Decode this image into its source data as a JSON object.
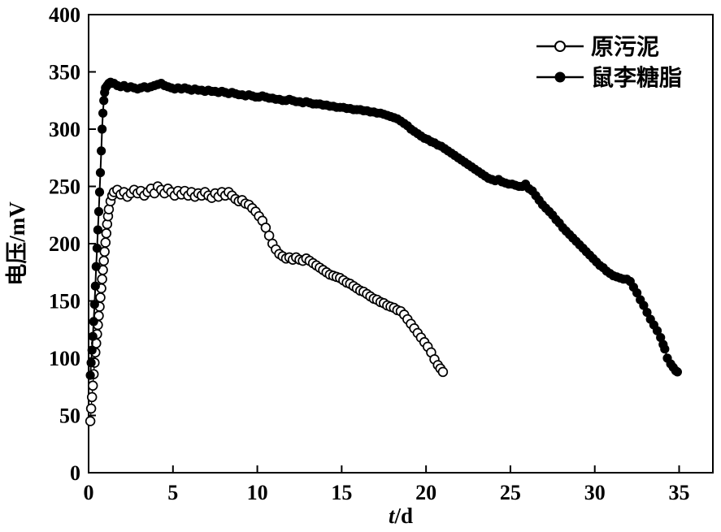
{
  "figure": {
    "background": "#ffffff",
    "ink": "#000000"
  },
  "chart_data": {
    "type": "scatter",
    "title": "",
    "xlabel": "t/d",
    "xlabel_var": "t",
    "xlabel_unit": "/d",
    "ylabel": "电压/mV",
    "xlim": [
      0,
      37
    ],
    "ylim": [
      0,
      400
    ],
    "xticks": [
      0,
      5,
      10,
      15,
      20,
      25,
      30,
      35
    ],
    "yticks": [
      0,
      50,
      100,
      150,
      200,
      250,
      300,
      350,
      400
    ],
    "grid": false,
    "legend": {
      "position": "top-right",
      "items": [
        {
          "label": "原污泥",
          "marker": "open-circle"
        },
        {
          "label": "鼠李糖脂",
          "marker": "filled-circle"
        }
      ]
    },
    "series": [
      {
        "name": "原污泥",
        "marker": "open-circle",
        "color": "#000000",
        "points": [
          [
            0.1,
            45
          ],
          [
            0.15,
            56
          ],
          [
            0.2,
            66
          ],
          [
            0.25,
            76
          ],
          [
            0.3,
            86
          ],
          [
            0.35,
            96
          ],
          [
            0.4,
            105
          ],
          [
            0.45,
            113
          ],
          [
            0.5,
            121
          ],
          [
            0.55,
            129
          ],
          [
            0.6,
            137
          ],
          [
            0.65,
            145
          ],
          [
            0.7,
            153
          ],
          [
            0.75,
            161
          ],
          [
            0.8,
            169
          ],
          [
            0.85,
            177
          ],
          [
            0.9,
            185
          ],
          [
            0.95,
            193
          ],
          [
            1.0,
            201
          ],
          [
            1.05,
            209
          ],
          [
            1.1,
            217
          ],
          [
            1.15,
            224
          ],
          [
            1.2,
            230
          ],
          [
            1.3,
            237
          ],
          [
            1.4,
            242
          ],
          [
            1.5,
            245
          ],
          [
            1.7,
            247
          ],
          [
            1.9,
            243
          ],
          [
            2.1,
            245
          ],
          [
            2.3,
            241
          ],
          [
            2.5,
            244
          ],
          [
            2.7,
            247
          ],
          [
            2.9,
            244
          ],
          [
            3.1,
            246
          ],
          [
            3.3,
            242
          ],
          [
            3.5,
            245
          ],
          [
            3.7,
            248
          ],
          [
            3.9,
            244
          ],
          [
            4.1,
            250
          ],
          [
            4.3,
            247
          ],
          [
            4.5,
            244
          ],
          [
            4.7,
            248
          ],
          [
            4.9,
            245
          ],
          [
            5.1,
            242
          ],
          [
            5.3,
            246
          ],
          [
            5.5,
            243
          ],
          [
            5.7,
            246
          ],
          [
            5.9,
            242
          ],
          [
            6.1,
            245
          ],
          [
            6.3,
            241
          ],
          [
            6.5,
            244
          ],
          [
            6.7,
            242
          ],
          [
            6.9,
            245
          ],
          [
            7.1,
            242
          ],
          [
            7.3,
            240
          ],
          [
            7.5,
            244
          ],
          [
            7.7,
            241
          ],
          [
            7.9,
            245
          ],
          [
            8.1,
            242
          ],
          [
            8.3,
            245
          ],
          [
            8.5,
            242
          ],
          [
            8.7,
            239
          ],
          [
            8.9,
            237
          ],
          [
            9.1,
            238
          ],
          [
            9.3,
            235
          ],
          [
            9.5,
            234
          ],
          [
            9.7,
            231
          ],
          [
            9.9,
            228
          ],
          [
            10.1,
            224
          ],
          [
            10.3,
            220
          ],
          [
            10.5,
            214
          ],
          [
            10.7,
            207
          ],
          [
            10.9,
            200
          ],
          [
            11.1,
            195
          ],
          [
            11.3,
            191
          ],
          [
            11.5,
            189
          ],
          [
            11.7,
            187
          ],
          [
            11.9,
            188
          ],
          [
            12.1,
            186
          ],
          [
            12.3,
            188
          ],
          [
            12.5,
            186
          ],
          [
            12.7,
            185
          ],
          [
            12.9,
            187
          ],
          [
            13.1,
            185
          ],
          [
            13.3,
            183
          ],
          [
            13.5,
            181
          ],
          [
            13.7,
            179
          ],
          [
            13.9,
            177
          ],
          [
            14.1,
            175
          ],
          [
            14.3,
            173
          ],
          [
            14.5,
            172
          ],
          [
            14.7,
            171
          ],
          [
            14.9,
            170
          ],
          [
            15.1,
            168
          ],
          [
            15.3,
            166
          ],
          [
            15.5,
            165
          ],
          [
            15.7,
            163
          ],
          [
            15.9,
            161
          ],
          [
            16.1,
            159
          ],
          [
            16.3,
            158
          ],
          [
            16.5,
            156
          ],
          [
            16.7,
            154
          ],
          [
            16.9,
            152
          ],
          [
            17.1,
            151
          ],
          [
            17.3,
            149
          ],
          [
            17.5,
            148
          ],
          [
            17.7,
            146
          ],
          [
            17.9,
            145
          ],
          [
            18.1,
            144
          ],
          [
            18.3,
            142
          ],
          [
            18.5,
            141
          ],
          [
            18.7,
            138
          ],
          [
            18.9,
            134
          ],
          [
            19.1,
            130
          ],
          [
            19.3,
            126
          ],
          [
            19.5,
            122
          ],
          [
            19.7,
            118
          ],
          [
            19.9,
            114
          ],
          [
            20.1,
            110
          ],
          [
            20.3,
            105
          ],
          [
            20.5,
            99
          ],
          [
            20.7,
            94
          ],
          [
            20.85,
            91
          ],
          [
            21.0,
            88
          ]
        ]
      },
      {
        "name": "鼠李糖脂",
        "marker": "filled-circle",
        "color": "#000000",
        "points": [
          [
            0.1,
            85
          ],
          [
            0.15,
            96
          ],
          [
            0.2,
            107
          ],
          [
            0.25,
            119
          ],
          [
            0.3,
            132
          ],
          [
            0.35,
            147
          ],
          [
            0.4,
            163
          ],
          [
            0.45,
            180
          ],
          [
            0.5,
            196
          ],
          [
            0.55,
            212
          ],
          [
            0.6,
            228
          ],
          [
            0.65,
            245
          ],
          [
            0.7,
            262
          ],
          [
            0.75,
            281
          ],
          [
            0.8,
            300
          ],
          [
            0.85,
            314
          ],
          [
            0.9,
            325
          ],
          [
            0.95,
            332
          ],
          [
            1.0,
            336
          ],
          [
            1.1,
            338
          ],
          [
            1.2,
            340
          ],
          [
            1.3,
            341
          ],
          [
            1.4,
            340
          ],
          [
            1.5,
            340
          ],
          [
            1.7,
            338
          ],
          [
            1.9,
            337
          ],
          [
            2.1,
            338
          ],
          [
            2.3,
            336
          ],
          [
            2.5,
            337
          ],
          [
            2.7,
            336
          ],
          [
            2.9,
            335
          ],
          [
            3.1,
            336
          ],
          [
            3.3,
            337
          ],
          [
            3.5,
            336
          ],
          [
            3.7,
            337
          ],
          [
            3.9,
            338
          ],
          [
            4.1,
            339
          ],
          [
            4.3,
            340
          ],
          [
            4.5,
            338
          ],
          [
            4.7,
            337
          ],
          [
            4.9,
            336
          ],
          [
            5.1,
            335
          ],
          [
            5.3,
            336
          ],
          [
            5.5,
            335
          ],
          [
            5.7,
            336
          ],
          [
            5.9,
            335
          ],
          [
            6.1,
            334
          ],
          [
            6.3,
            335
          ],
          [
            6.5,
            334
          ],
          [
            6.7,
            334
          ],
          [
            6.9,
            333
          ],
          [
            7.1,
            334
          ],
          [
            7.3,
            333
          ],
          [
            7.5,
            333
          ],
          [
            7.7,
            332
          ],
          [
            7.9,
            333
          ],
          [
            8.1,
            332
          ],
          [
            8.3,
            331
          ],
          [
            8.5,
            332
          ],
          [
            8.7,
            331
          ],
          [
            8.9,
            330
          ],
          [
            9.1,
            330
          ],
          [
            9.3,
            329
          ],
          [
            9.5,
            330
          ],
          [
            9.7,
            329
          ],
          [
            9.9,
            328
          ],
          [
            10.1,
            328
          ],
          [
            10.3,
            329
          ],
          [
            10.5,
            328
          ],
          [
            10.7,
            327
          ],
          [
            10.9,
            327
          ],
          [
            11.1,
            326
          ],
          [
            11.3,
            326
          ],
          [
            11.5,
            325
          ],
          [
            11.7,
            325
          ],
          [
            11.9,
            326
          ],
          [
            12.1,
            325
          ],
          [
            12.3,
            324
          ],
          [
            12.5,
            324
          ],
          [
            12.7,
            323
          ],
          [
            12.9,
            324
          ],
          [
            13.1,
            323
          ],
          [
            13.3,
            322
          ],
          [
            13.5,
            322
          ],
          [
            13.7,
            322
          ],
          [
            13.9,
            321
          ],
          [
            14.1,
            321
          ],
          [
            14.3,
            320
          ],
          [
            14.5,
            320
          ],
          [
            14.7,
            319
          ],
          [
            14.9,
            319
          ],
          [
            15.1,
            319
          ],
          [
            15.3,
            318
          ],
          [
            15.5,
            318
          ],
          [
            15.7,
            317
          ],
          [
            15.9,
            317
          ],
          [
            16.1,
            317
          ],
          [
            16.3,
            316
          ],
          [
            16.5,
            316
          ],
          [
            16.7,
            315
          ],
          [
            16.9,
            315
          ],
          [
            17.1,
            314
          ],
          [
            17.3,
            314
          ],
          [
            17.5,
            313
          ],
          [
            17.7,
            312
          ],
          [
            17.9,
            311
          ],
          [
            18.1,
            310
          ],
          [
            18.3,
            309
          ],
          [
            18.5,
            307
          ],
          [
            18.7,
            305
          ],
          [
            18.9,
            303
          ],
          [
            19.1,
            300
          ],
          [
            19.3,
            298
          ],
          [
            19.5,
            296
          ],
          [
            19.7,
            294
          ],
          [
            19.9,
            292
          ],
          [
            20.1,
            291
          ],
          [
            20.3,
            289
          ],
          [
            20.5,
            288
          ],
          [
            20.7,
            286
          ],
          [
            20.9,
            285
          ],
          [
            21.1,
            283
          ],
          [
            21.3,
            281
          ],
          [
            21.5,
            279
          ],
          [
            21.7,
            277
          ],
          [
            21.9,
            275
          ],
          [
            22.1,
            273
          ],
          [
            22.3,
            271
          ],
          [
            22.5,
            269
          ],
          [
            22.7,
            267
          ],
          [
            22.9,
            265
          ],
          [
            23.1,
            263
          ],
          [
            23.3,
            261
          ],
          [
            23.5,
            259
          ],
          [
            23.7,
            257
          ],
          [
            23.9,
            256
          ],
          [
            24.1,
            255
          ],
          [
            24.3,
            256
          ],
          [
            24.5,
            254
          ],
          [
            24.7,
            253
          ],
          [
            24.9,
            252
          ],
          [
            25.1,
            252
          ],
          [
            25.3,
            251
          ],
          [
            25.5,
            250
          ],
          [
            25.7,
            250
          ],
          [
            25.9,
            252
          ],
          [
            26.1,
            248
          ],
          [
            26.3,
            246
          ],
          [
            26.5,
            242
          ],
          [
            26.7,
            238
          ],
          [
            26.9,
            234
          ],
          [
            27.1,
            231
          ],
          [
            27.3,
            228
          ],
          [
            27.5,
            225
          ],
          [
            27.7,
            221
          ],
          [
            27.9,
            218
          ],
          [
            28.1,
            214
          ],
          [
            28.3,
            211
          ],
          [
            28.5,
            208
          ],
          [
            28.7,
            205
          ],
          [
            28.9,
            202
          ],
          [
            29.1,
            199
          ],
          [
            29.3,
            196
          ],
          [
            29.5,
            193
          ],
          [
            29.7,
            190
          ],
          [
            29.9,
            187
          ],
          [
            30.1,
            184
          ],
          [
            30.3,
            181
          ],
          [
            30.5,
            179
          ],
          [
            30.7,
            176
          ],
          [
            30.9,
            174
          ],
          [
            31.1,
            172
          ],
          [
            31.3,
            171
          ],
          [
            31.5,
            170
          ],
          [
            31.7,
            169
          ],
          [
            31.9,
            169
          ],
          [
            32.1,
            167
          ],
          [
            32.3,
            162
          ],
          [
            32.5,
            157
          ],
          [
            32.7,
            151
          ],
          [
            32.9,
            146
          ],
          [
            33.1,
            140
          ],
          [
            33.3,
            134
          ],
          [
            33.5,
            129
          ],
          [
            33.7,
            124
          ],
          [
            33.9,
            118
          ],
          [
            34.05,
            112
          ],
          [
            34.15,
            108
          ],
          [
            34.3,
            100
          ],
          [
            34.5,
            95
          ],
          [
            34.65,
            92
          ],
          [
            34.8,
            89
          ],
          [
            34.9,
            88
          ]
        ]
      }
    ]
  }
}
